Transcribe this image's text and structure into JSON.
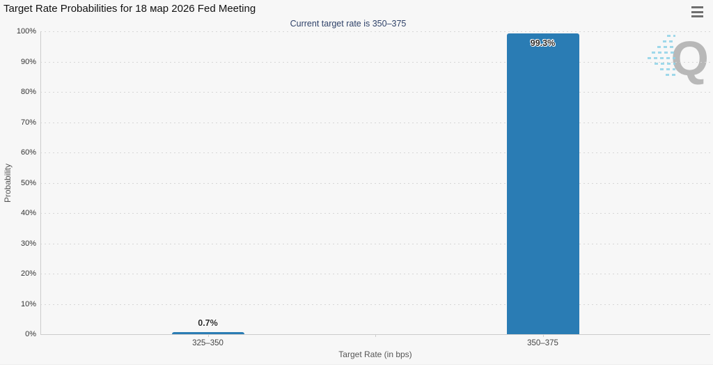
{
  "header": {
    "title": "Target Rate Probabilities for 18 мар 2026 Fed Meeting",
    "subtitle": "Current target rate is 350–375",
    "menu_icon": "hamburger-menu-icon"
  },
  "watermark": {
    "letter": "Q"
  },
  "chart_data": {
    "type": "bar",
    "title": "Target Rate Probabilities for 18 мар 2026 Fed Meeting",
    "subtitle": "Current target rate is 350–375",
    "categories": [
      "325–350",
      "350–375"
    ],
    "values": [
      0.7,
      99.3
    ],
    "data_labels": [
      "0.7%",
      "99.3%"
    ],
    "xlabel": "Target Rate (in bps)",
    "ylabel": "Probability",
    "ylim": [
      0,
      100
    ],
    "ytick_step": 10,
    "ytick_labels": [
      "0%",
      "10%",
      "20%",
      "30%",
      "40%",
      "50%",
      "60%",
      "70%",
      "80%",
      "90%",
      "100%"
    ],
    "grid": "dotted-horizontal",
    "legend": "none",
    "colors": {
      "bar": "#2a7cb4",
      "background": "#f7f7f7",
      "subtitle_text": "#2f4269",
      "axis_line": "#cccccc",
      "gridline": "#d6d6d6",
      "tick_label": "#333333",
      "axis_title": "#555555",
      "watermark_gray": "#b8b8b8",
      "watermark_blue": "#8fd3e8"
    }
  }
}
